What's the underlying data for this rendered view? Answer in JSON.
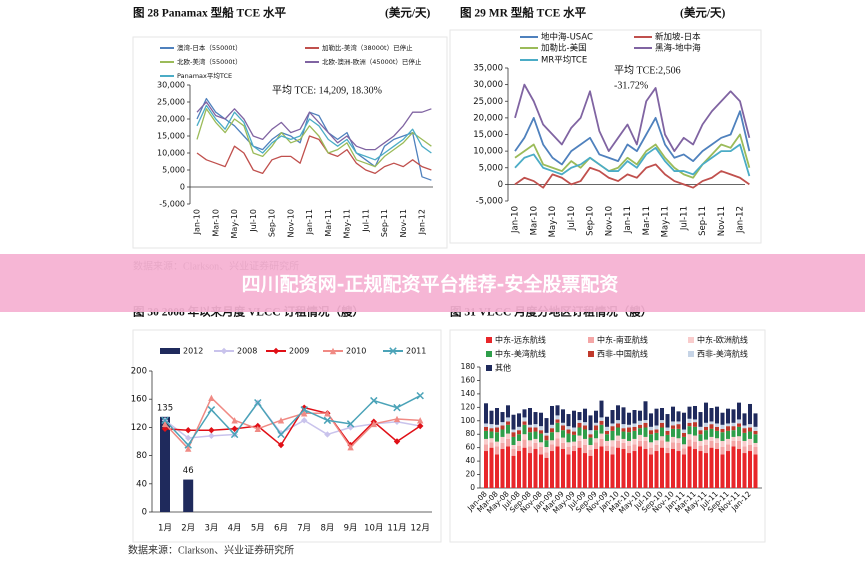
{
  "banner": "四川配资网-正规配资平台推荐-安全股票配资",
  "sources": [
    "数据来源：Clarkson、兴业证券研究所",
    "数据来源：Clarkson、兴业证券研究所"
  ],
  "chart_data": [
    {
      "type": "line",
      "title": "图 28 Panamax 型船 TCE 水平",
      "unit": "(美元/天)",
      "annotations": [
        "平均 TCE: 14,209, 18.30%"
      ],
      "categories": [
        "Jan-10",
        null,
        "Mar-10",
        null,
        "May-10",
        null,
        "Jul-10",
        null,
        "Sep-10",
        null,
        "Nov-10",
        null,
        "Jan-11",
        null,
        "Mar-11",
        null,
        "May-11",
        null,
        "Jul-11",
        null,
        "Sep-11",
        null,
        "Nov-11",
        null,
        "Jan-12",
        null
      ],
      "ylim": [
        -5000,
        30000
      ],
      "yticks": [
        {
          "value": -5000,
          "label": "-5,000"
        },
        0,
        {
          "value": 5000,
          "label": "5,000"
        },
        {
          "value": 10000,
          "label": "10,000"
        },
        {
          "value": 15000,
          "label": "15,000"
        },
        {
          "value": 20000,
          "label": "20,000"
        },
        {
          "value": 25000,
          "label": "25,000"
        },
        {
          "value": 30000,
          "label": "30,000"
        }
      ],
      "series": [
        {
          "name": "澳湾-日本（55000t）",
          "color": "#4f81bd",
          "values": [
            20000,
            26000,
            22000,
            20000,
            18000,
            15000,
            12000,
            11000,
            14000,
            16000,
            15000,
            13000,
            22000,
            21000,
            16000,
            14000,
            16000,
            10000,
            8000,
            6000,
            12000,
            14000,
            15000,
            16000,
            3000,
            2000
          ]
        },
        {
          "name": "加勒比-美湾（38000t）已停止",
          "color": "#c0504d",
          "values": [
            10000,
            8000,
            7000,
            6000,
            12000,
            10000,
            5000,
            4000,
            8000,
            9000,
            9000,
            7000,
            15000,
            14000,
            10000,
            9000,
            11000,
            7000,
            5000,
            4000,
            6000,
            7000,
            6000,
            8000,
            6000,
            5000
          ]
        },
        {
          "name": "北欧-美湾（55000t）",
          "color": "#9bbb59",
          "values": [
            14000,
            23000,
            19000,
            16000,
            20000,
            18000,
            10000,
            9000,
            12000,
            16000,
            13000,
            14000,
            18000,
            15000,
            10000,
            11000,
            13000,
            8000,
            7000,
            6000,
            9000,
            11000,
            13000,
            16000,
            14000,
            12000
          ]
        },
        {
          "name": "北欧-澳洲-欧洲（45000t）已停止",
          "color": "#8064a2",
          "values": [
            22000,
            25000,
            21000,
            20000,
            23000,
            20000,
            15000,
            14000,
            17000,
            19000,
            16000,
            17000,
            22000,
            19000,
            16000,
            13000,
            15000,
            12000,
            11000,
            11000,
            13000,
            15000,
            18000,
            22000,
            22000,
            23000
          ]
        },
        {
          "name": "Panamax平均TCE",
          "color": "#4bacc6",
          "values": [
            18000,
            24000,
            20000,
            17000,
            22000,
            19000,
            12000,
            10000,
            13000,
            15000,
            14000,
            15000,
            20000,
            18000,
            14000,
            12000,
            14000,
            10000,
            9000,
            8000,
            10000,
            12000,
            14000,
            17000,
            12000,
            10000
          ]
        }
      ]
    },
    {
      "type": "line",
      "title": "图 29 MR 型船 TCE 水平",
      "unit": "(美元/天)",
      "annotations": [
        "平均 TCE:2,506",
        "-31.72%"
      ],
      "categories": [
        "Jan-10",
        null,
        "Mar-10",
        null,
        "May-10",
        null,
        "Jul-10",
        null,
        "Sep-10",
        null,
        "Nov-10",
        null,
        "Jan-11",
        null,
        "Mar-11",
        null,
        "May-11",
        null,
        "Jul-11",
        null,
        "Sep-11",
        null,
        "Nov-11",
        null,
        "Jan-12",
        null
      ],
      "ylim": [
        -5000,
        35000
      ],
      "yticks": [
        {
          "value": -5000,
          "label": "-5,000"
        },
        0,
        {
          "value": 5000,
          "label": "5,000"
        },
        {
          "value": 10000,
          "label": "10,000"
        },
        {
          "value": 15000,
          "label": "15,000"
        },
        {
          "value": 20000,
          "label": "20,000"
        },
        {
          "value": 25000,
          "label": "25,000"
        },
        {
          "value": 30000,
          "label": "30,000"
        },
        {
          "value": 35000,
          "label": "35,000"
        }
      ],
      "series": [
        {
          "name": "地中海-USAC",
          "color": "#4f81bd",
          "values": [
            10000,
            14000,
            20000,
            12000,
            8000,
            6000,
            10000,
            12000,
            14000,
            9000,
            8000,
            7000,
            12000,
            10000,
            15000,
            20000,
            12000,
            8000,
            9000,
            7000,
            10000,
            12000,
            14000,
            15000,
            22000,
            10000
          ]
        },
        {
          "name": "新加坡-日本",
          "color": "#c0504d",
          "values": [
            0,
            2000,
            1000,
            -1000,
            3000,
            2000,
            0,
            1000,
            5000,
            4000,
            2000,
            1000,
            3000,
            2000,
            5000,
            6000,
            3000,
            1000,
            0,
            -1000,
            1000,
            2000,
            4000,
            3000,
            2000,
            0
          ]
        },
        {
          "name": "加勒比-美国",
          "color": "#9bbb59",
          "values": [
            8000,
            10000,
            12000,
            6000,
            5000,
            4000,
            7000,
            5000,
            8000,
            6000,
            4000,
            5000,
            8000,
            6000,
            10000,
            12000,
            8000,
            5000,
            3000,
            2000,
            6000,
            9000,
            12000,
            11000,
            15000,
            5000
          ]
        },
        {
          "name": "黑海-地中海",
          "color": "#8064a2",
          "values": [
            20000,
            30000,
            25000,
            18000,
            15000,
            12000,
            17000,
            20000,
            28000,
            16000,
            10000,
            14000,
            18000,
            12000,
            25000,
            29000,
            15000,
            10000,
            14000,
            12000,
            18000,
            22000,
            25000,
            28000,
            25000,
            14000
          ]
        },
        {
          "name": "MR平均TCE",
          "color": "#4bacc6",
          "values": [
            5000,
            8000,
            9000,
            5000,
            4000,
            3000,
            5000,
            6000,
            8000,
            6000,
            4000,
            4000,
            7000,
            5000,
            9000,
            11000,
            7000,
            4000,
            4000,
            3000,
            6000,
            8000,
            10000,
            10000,
            12000,
            2500
          ]
        }
      ]
    },
    {
      "type": "combo",
      "title": "图 30 2008 年以来月度 VLCC 订租情况（艘）",
      "categories": [
        "1月",
        "2月",
        "3月",
        "4月",
        "5月",
        "6月",
        "7月",
        "8月",
        "9月",
        "10月",
        "11月",
        "12月"
      ],
      "ylim": [
        0,
        200
      ],
      "yticks": [
        0,
        40,
        80,
        120,
        160,
        200
      ],
      "series": [
        {
          "name": "2012",
          "type": "bar",
          "color": "#1f2a5c",
          "data_labels": true,
          "values": [
            135,
            46,
            null,
            null,
            null,
            null,
            null,
            null,
            null,
            null,
            null,
            null
          ]
        },
        {
          "name": "2008",
          "type": "line",
          "marker": "diamond",
          "color": "#c9c3ec",
          "values": [
            130,
            105,
            108,
            110,
            155,
            112,
            130,
            110,
            120,
            125,
            128,
            122
          ]
        },
        {
          "name": "2009",
          "type": "line",
          "marker": "diamond",
          "color": "#e00f16",
          "values": [
            118,
            116,
            116,
            118,
            122,
            95,
            148,
            140,
            95,
            128,
            100,
            122
          ]
        },
        {
          "name": "2010",
          "type": "line",
          "marker": "triangle",
          "color": "#f08a84",
          "values": [
            125,
            90,
            162,
            130,
            118,
            130,
            140,
            140,
            92,
            125,
            132,
            130
          ]
        },
        {
          "name": "2011",
          "type": "line",
          "marker": "x",
          "color": "#4ba3b8",
          "values": [
            130,
            95,
            145,
            110,
            155,
            110,
            145,
            130,
            125,
            158,
            148,
            165
          ]
        }
      ]
    },
    {
      "type": "bar",
      "stacked": true,
      "title": "图 31 VLCC 月度分地区订租情况（艘）",
      "categories": [
        "Jan-08",
        null,
        "Mar-08",
        null,
        "May-08",
        null,
        "Jul-08",
        null,
        "Sep-08",
        null,
        "Nov-08",
        null,
        "Jan-09",
        null,
        "Mar-09",
        null,
        "May-09",
        null,
        "Jul-09",
        null,
        "Sep-09",
        null,
        "Nov-09",
        null,
        "Jan-10",
        null,
        "Mar-10",
        null,
        "May-10",
        null,
        "Jul-10",
        null,
        "Sep-10",
        null,
        "Nov-10",
        null,
        "Jan-11",
        null,
        "Mar-11",
        null,
        "May-11",
        null,
        "Jul-11",
        null,
        "Sep-11",
        null,
        "Nov-11",
        null,
        "Jan-12",
        null
      ],
      "ylim": [
        0,
        180
      ],
      "yticks": [
        0,
        20,
        40,
        60,
        80,
        100,
        120,
        140,
        160,
        180
      ],
      "series": [
        {
          "name": "中东-远东航线",
          "color": "#e8262a",
          "values": [
            55,
            60,
            50,
            58,
            62,
            48,
            55,
            60,
            52,
            58,
            50,
            45,
            55,
            62,
            58,
            50,
            55,
            60,
            52,
            48,
            58,
            62,
            55,
            50,
            60,
            58,
            52,
            55,
            62,
            58,
            50,
            55,
            60,
            52,
            58,
            55,
            50,
            62,
            58,
            55,
            52,
            60,
            58,
            50,
            55,
            62,
            58,
            52,
            55,
            50
          ]
        },
        {
          "name": "中东-南亚航线",
          "color": "#f4a6a6",
          "values": [
            10,
            8,
            12,
            9,
            11,
            10,
            8,
            12,
            10,
            9,
            11,
            8,
            10,
            12,
            9,
            11,
            8,
            10,
            12,
            9,
            10,
            11,
            8,
            12,
            10,
            9,
            11,
            10,
            8,
            12,
            10,
            9,
            11,
            8,
            10,
            12,
            9,
            10,
            11,
            8,
            12,
            10,
            9,
            11,
            10,
            8,
            12,
            10,
            9,
            11
          ]
        },
        {
          "name": "中东-欧洲航线",
          "color": "#f9cccc",
          "values": [
            8,
            6,
            7,
            9,
            8,
            6,
            7,
            8,
            9,
            6,
            7,
            8,
            6,
            9,
            8,
            7,
            6,
            8,
            9,
            7,
            6,
            8,
            7,
            9,
            8,
            6,
            7,
            8,
            9,
            6,
            8,
            7,
            6,
            9,
            8,
            7,
            6,
            8,
            9,
            7,
            8,
            6,
            7,
            9,
            8,
            6,
            7,
            8,
            9,
            6
          ]
        },
        {
          "name": "中东-美湾航线",
          "color": "#2e9e4a",
          "values": [
            12,
            10,
            14,
            11,
            13,
            12,
            10,
            14,
            12,
            11,
            13,
            10,
            12,
            14,
            11,
            13,
            10,
            12,
            14,
            11,
            12,
            13,
            10,
            14,
            12,
            11,
            13,
            12,
            10,
            14,
            12,
            11,
            13,
            10,
            12,
            14,
            11,
            12,
            13,
            10,
            14,
            12,
            11,
            13,
            12,
            10,
            14,
            12,
            11,
            13
          ]
        },
        {
          "name": "西非-中国航线",
          "color": "#c0392b",
          "values": [
            6,
            5,
            7,
            6,
            5,
            7,
            6,
            5,
            7,
            6,
            5,
            7,
            6,
            5,
            7,
            6,
            5,
            7,
            6,
            5,
            7,
            6,
            5,
            7,
            6,
            5,
            7,
            6,
            5,
            7,
            6,
            5,
            7,
            6,
            5,
            7,
            6,
            5,
            7,
            6,
            5,
            7,
            6,
            5,
            7,
            6,
            5,
            7,
            6,
            5
          ]
        },
        {
          "name": "西非-美湾航线",
          "color": "#c6d4e6",
          "values": [
            5,
            6,
            4,
            5,
            6,
            4,
            5,
            6,
            4,
            5,
            6,
            4,
            5,
            6,
            4,
            5,
            6,
            4,
            5,
            6,
            4,
            5,
            6,
            4,
            5,
            6,
            4,
            5,
            6,
            4,
            5,
            6,
            4,
            5,
            6,
            4,
            5,
            6,
            4,
            5,
            6,
            4,
            5,
            6,
            4,
            5,
            6,
            4,
            5,
            6
          ]
        },
        {
          "name": "其他",
          "color": "#1f2a5c",
          "values": [
            30,
            20,
            25,
            15,
            18,
            22,
            20,
            12,
            25,
            18,
            20,
            22,
            28,
            15,
            20,
            18,
            25,
            12,
            20,
            22,
            18,
            25,
            15,
            20,
            22,
            25,
            18,
            20,
            15,
            28,
            20,
            25,
            18,
            20,
            22,
            15,
            25,
            18,
            20,
            22,
            30,
            20,
            25,
            18,
            22,
            20,
            25,
            18,
            30,
            20
          ]
        }
      ]
    }
  ]
}
